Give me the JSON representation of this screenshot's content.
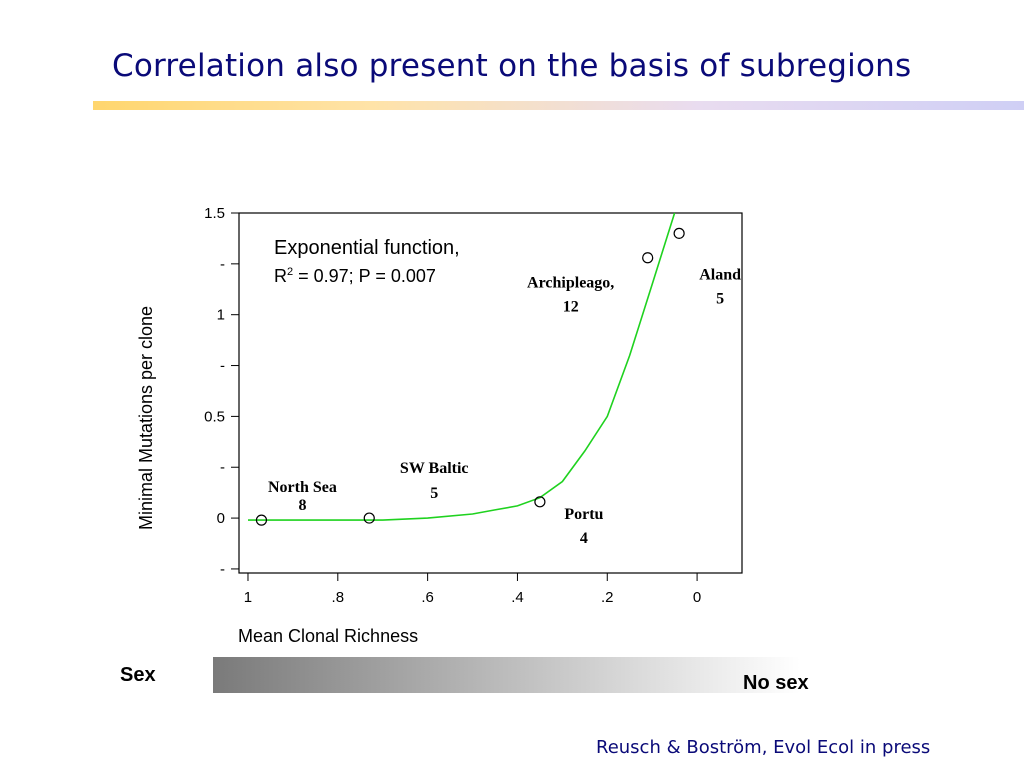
{
  "slide": {
    "title": "Correlation also present on the basis of subregions",
    "sex_label": "Sex",
    "no_sex_label": "No sex",
    "citation": "Reusch &  Boström, Evol Ecol in press",
    "title_color": "#0a0a78"
  },
  "chart_data": {
    "type": "scatter",
    "xlabel": "Mean Clonal Richness",
    "ylabel": "Minimal Mutations per clone",
    "xlim": [
      1.02,
      -0.1
    ],
    "ylim": [
      -0.27,
      1.5
    ],
    "x_reversed": true,
    "xticks": [
      {
        "v": 1,
        "label": "1"
      },
      {
        "v": 0.8,
        "label": ".8"
      },
      {
        "v": 0.6,
        "label": ".6"
      },
      {
        "v": 0.4,
        "label": ".4"
      },
      {
        "v": 0.2,
        "label": ".2"
      },
      {
        "v": 0,
        "label": "0"
      }
    ],
    "yticks": [
      {
        "v": 1.5,
        "label": "1.5"
      },
      {
        "v": 1.25,
        "label": "-"
      },
      {
        "v": 1,
        "label": "1"
      },
      {
        "v": 0.75,
        "label": "-"
      },
      {
        "v": 0.5,
        "label": "0.5"
      },
      {
        "v": 0.25,
        "label": "-"
      },
      {
        "v": 0,
        "label": "0"
      },
      {
        "v": -0.25,
        "label": "-"
      }
    ],
    "points": [
      {
        "name": "North Sea",
        "n": "8",
        "x": 0.97,
        "y": -0.01
      },
      {
        "name": "SW Baltic",
        "n": "5",
        "x": 0.73,
        "y": 0.0
      },
      {
        "name": "Portu",
        "n": "4",
        "x": 0.35,
        "y": 0.08
      },
      {
        "name": "Archipleago,",
        "n": "12",
        "x": 0.11,
        "y": 1.28
      },
      {
        "name": "Aland",
        "n": "5",
        "x": 0.04,
        "y": 1.4
      }
    ],
    "fit": {
      "model": "exponential",
      "annotation_line1": "Exponential function,",
      "annotation_r": "R",
      "annotation_sup": "2",
      "annotation_rest": " = 0.97; P = 0.007",
      "curve": [
        [
          1.0,
          -0.01
        ],
        [
          0.9,
          -0.01
        ],
        [
          0.8,
          -0.01
        ],
        [
          0.7,
          -0.01
        ],
        [
          0.6,
          0.0
        ],
        [
          0.5,
          0.02
        ],
        [
          0.45,
          0.04
        ],
        [
          0.4,
          0.06
        ],
        [
          0.35,
          0.1
        ],
        [
          0.3,
          0.18
        ],
        [
          0.25,
          0.33
        ],
        [
          0.2,
          0.5
        ],
        [
          0.15,
          0.8
        ],
        [
          0.1,
          1.15
        ],
        [
          0.05,
          1.5
        ]
      ],
      "color": "#1fd21f"
    },
    "grid": false
  }
}
